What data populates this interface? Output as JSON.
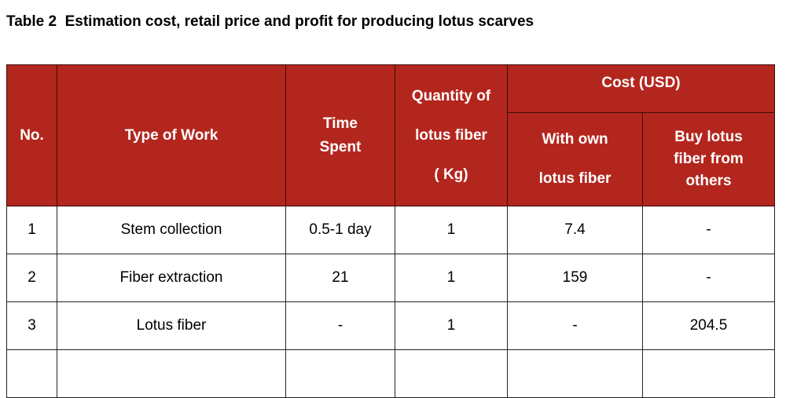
{
  "title": "Table 2  Estimation cost, retail price and profit for producing lotus scarves",
  "table": {
    "header": {
      "no": "No.",
      "type": "Type of Work",
      "time": [
        "Time",
        "Spent"
      ],
      "quantity": [
        "Quantity of",
        "lotus fiber",
        "( Kg)"
      ],
      "cost": "Cost (USD)",
      "own": [
        "With own",
        "lotus fiber"
      ],
      "buy": [
        "Buy lotus",
        "fiber from",
        "others"
      ]
    },
    "rows": [
      [
        "1",
        "Stem collection",
        "0.5-1 day",
        "1",
        "7.4",
        "-"
      ],
      [
        "2",
        "Fiber extraction",
        "21",
        "1",
        "159",
        "-"
      ],
      [
        "3",
        "Lotus fiber",
        "-",
        "1",
        "-",
        "204.5"
      ]
    ]
  }
}
